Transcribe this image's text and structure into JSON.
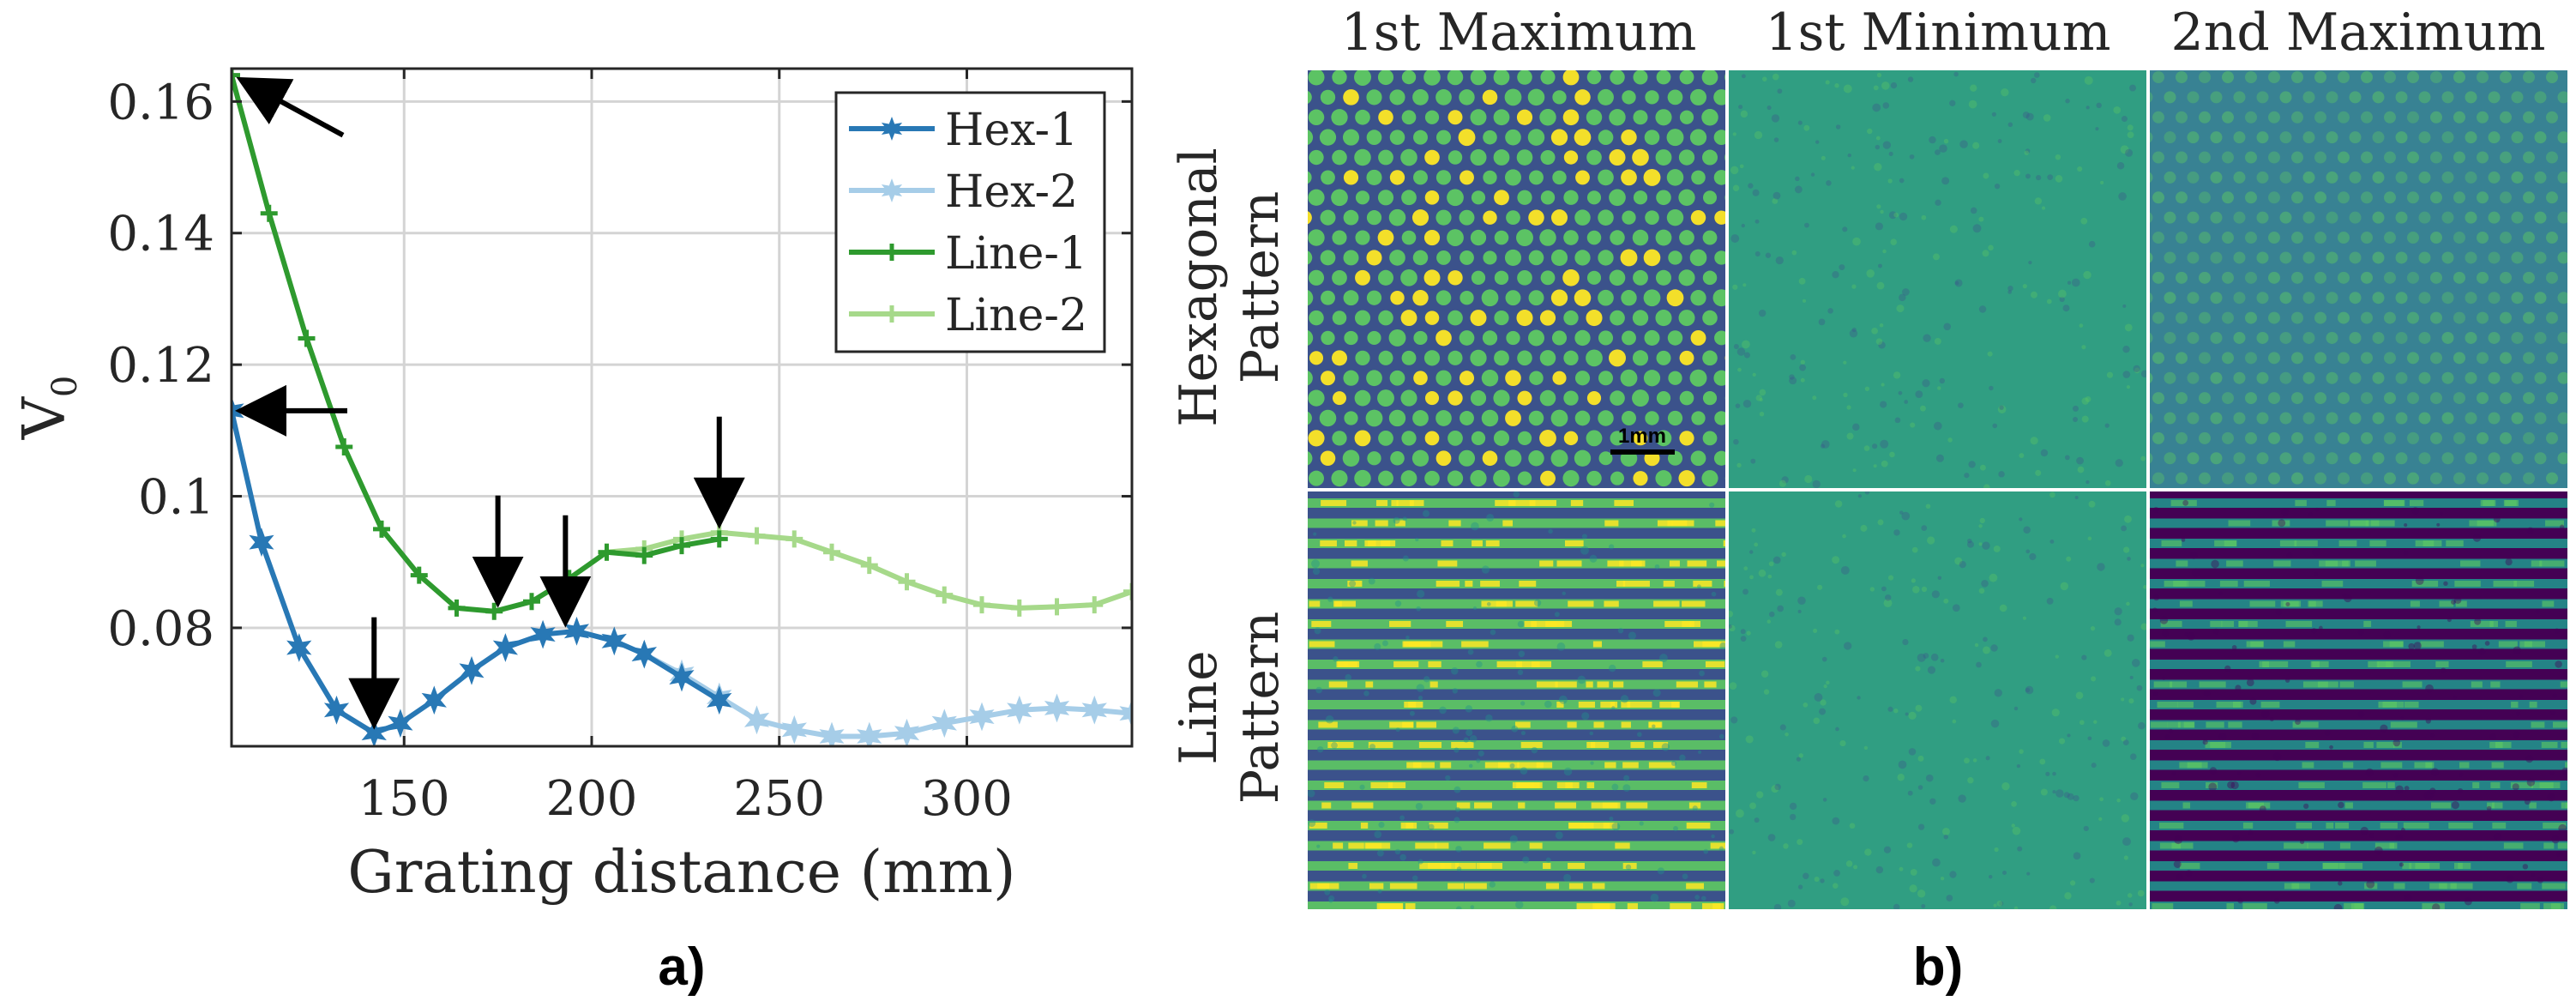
{
  "chart_data": {
    "type": "line",
    "panel_label": "a)",
    "xlabel": "Grating distance (mm)",
    "ylabel": "V",
    "ylabel_sub": "0",
    "xlim": [
      104,
      344
    ],
    "ylim": [
      0.062,
      0.165
    ],
    "xticks": [
      150,
      200,
      250,
      300
    ],
    "xtick_labels": [
      "150",
      "200",
      "250",
      "300"
    ],
    "yticks": [
      0.08,
      0.1,
      0.12,
      0.14,
      0.16
    ],
    "ytick_labels": [
      "0.08",
      "0.1",
      "0.12",
      "0.14",
      "0.16"
    ],
    "grid": true,
    "legend_position": "top-right",
    "series": [
      {
        "name": "Hex-1",
        "color": "#2878b5",
        "marker": "star",
        "x": [
          104,
          112,
          122,
          132,
          142,
          149,
          158,
          168,
          177,
          187,
          196,
          206,
          214,
          224,
          234
        ],
        "y": [
          0.113,
          0.093,
          0.077,
          0.0675,
          0.064,
          0.0655,
          0.069,
          0.0735,
          0.077,
          0.079,
          0.0795,
          0.078,
          0.076,
          0.0725,
          0.069
        ]
      },
      {
        "name": "Hex-2",
        "color": "#a6cde8",
        "marker": "star",
        "x": [
          214,
          224,
          234,
          244,
          254,
          264,
          274,
          284,
          294,
          304,
          314,
          324,
          334,
          344
        ],
        "y": [
          0.076,
          0.073,
          0.0695,
          0.066,
          0.0645,
          0.0635,
          0.0635,
          0.064,
          0.0655,
          0.0665,
          0.0675,
          0.0678,
          0.0675,
          0.067
        ]
      },
      {
        "name": "Line-1",
        "color": "#2e9a2e",
        "marker": "plus",
        "x": [
          104,
          114,
          124,
          134,
          144,
          154,
          164,
          174,
          184,
          194,
          204,
          214,
          224,
          234
        ],
        "y": [
          0.164,
          0.143,
          0.124,
          0.1075,
          0.095,
          0.088,
          0.083,
          0.0825,
          0.084,
          0.0875,
          0.0915,
          0.091,
          0.0925,
          0.0935
        ]
      },
      {
        "name": "Line-2",
        "color": "#a6d98a",
        "marker": "plus",
        "x": [
          204,
          214,
          224,
          234,
          244,
          254,
          264,
          274,
          284,
          294,
          304,
          314,
          324,
          334,
          344
        ],
        "y": [
          0.0915,
          0.092,
          0.0935,
          0.0945,
          0.094,
          0.0935,
          0.0915,
          0.0895,
          0.087,
          0.085,
          0.0835,
          0.083,
          0.0832,
          0.0835,
          0.0855
        ]
      }
    ],
    "annotations": [
      {
        "type": "arrow",
        "target_x": 104,
        "target_y": 0.164,
        "direction": "from-lower-right"
      },
      {
        "type": "arrow",
        "target_x": 104,
        "target_y": 0.113,
        "direction": "from-right"
      },
      {
        "type": "arrow",
        "target_x": 142,
        "target_y": 0.064,
        "direction": "from-above"
      },
      {
        "type": "arrow",
        "target_x": 175,
        "target_y": 0.0825,
        "direction": "from-above"
      },
      {
        "type": "arrow",
        "target_x": 193,
        "target_y": 0.0795,
        "direction": "from-above"
      },
      {
        "type": "arrow",
        "target_x": 234,
        "target_y": 0.0945,
        "direction": "from-above"
      }
    ]
  },
  "image_grid": {
    "panel_label": "b)",
    "column_titles": [
      "1st Maximum",
      "1st Minimum",
      "2nd Maximum"
    ],
    "row_titles": [
      {
        "line1": "Hexagonal",
        "line2": "Pattern"
      },
      {
        "line1": "Line",
        "line2": "Pattern"
      }
    ],
    "scale_bar_label": "1mm",
    "colormap": {
      "low": "#440154",
      "mid_low": "#3b528b",
      "mid": "#21918c",
      "mid_high": "#5ec962",
      "high": "#fde725"
    }
  }
}
